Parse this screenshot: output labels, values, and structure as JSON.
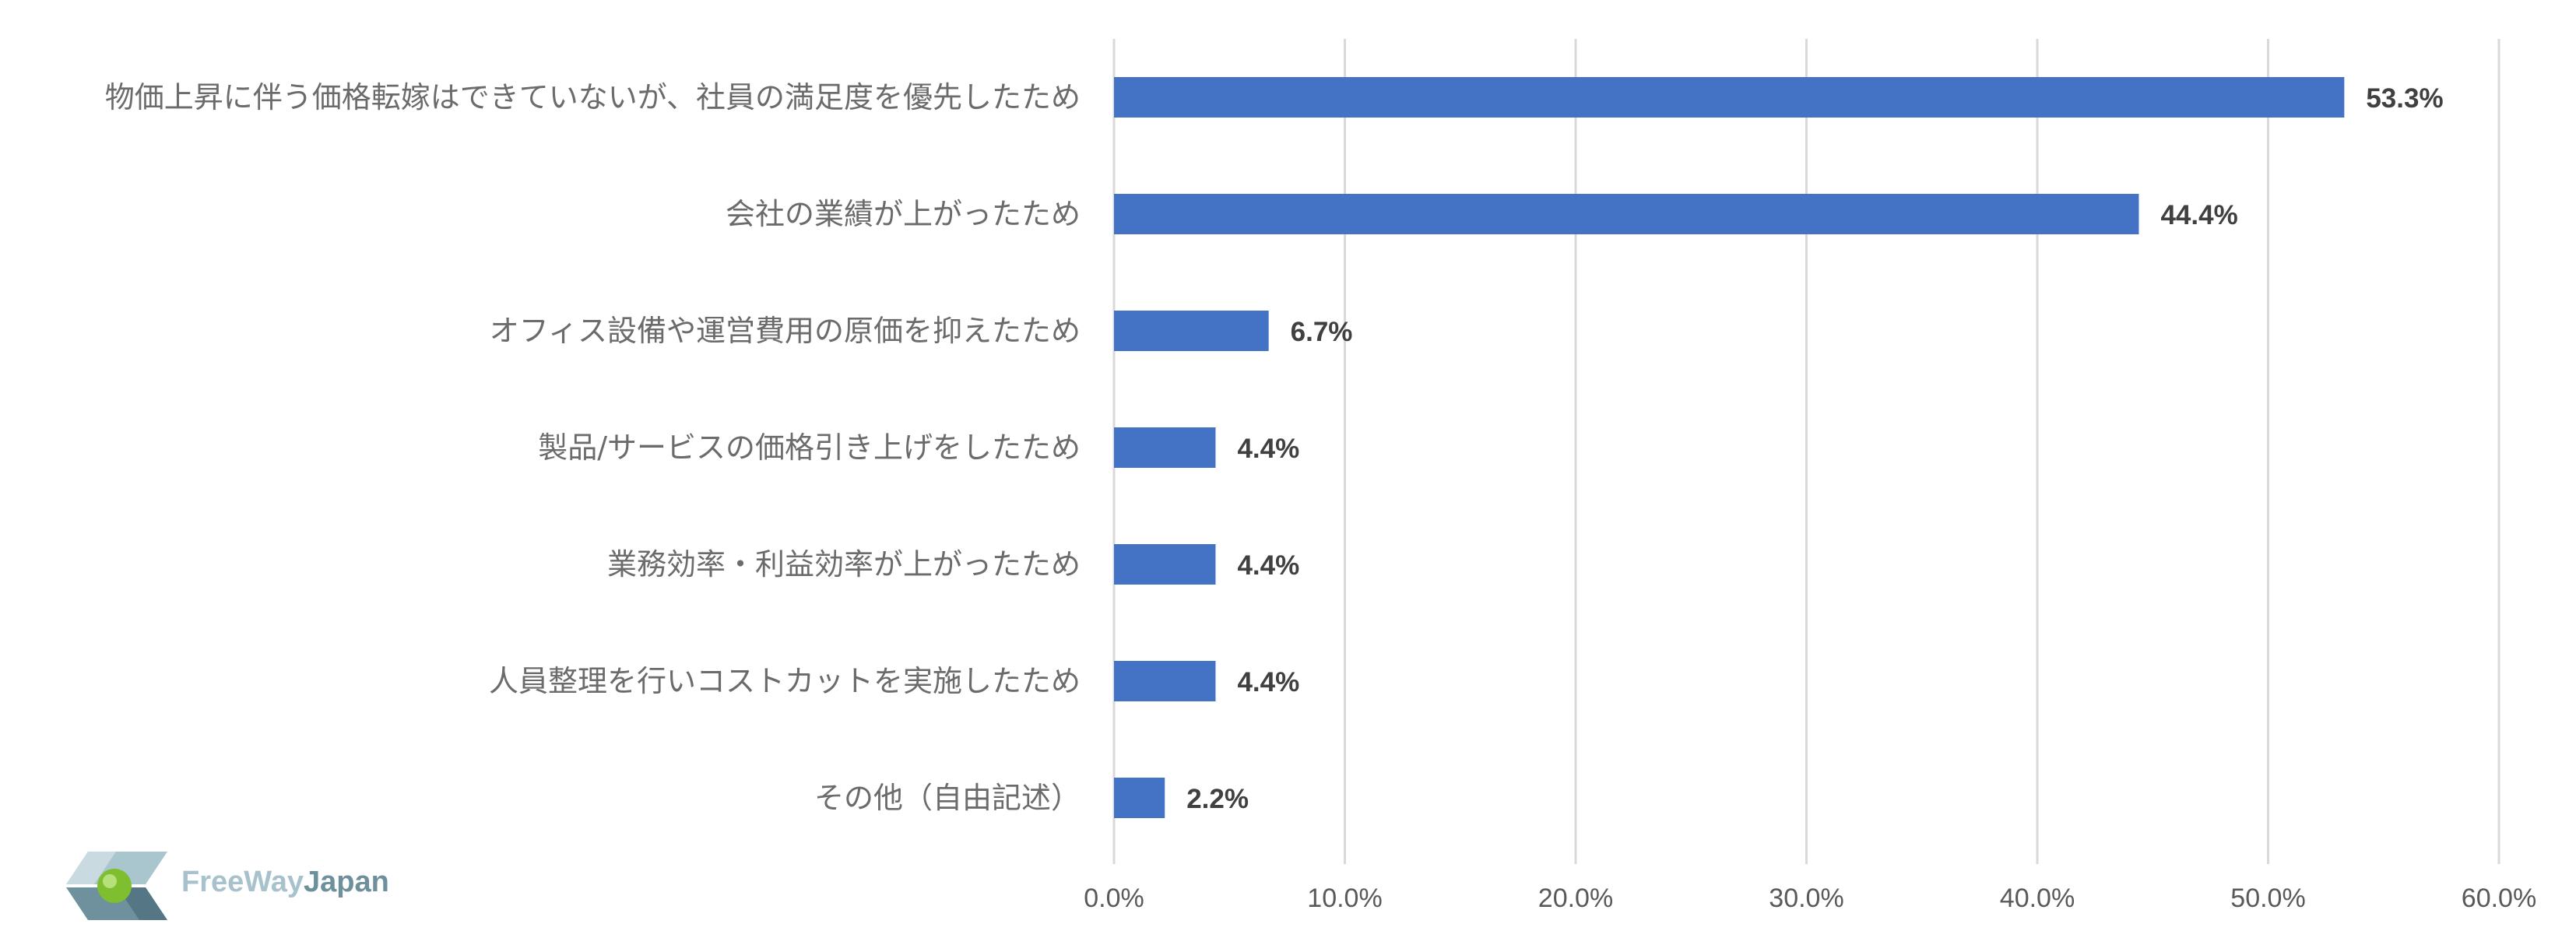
{
  "chart_data": {
    "type": "bar",
    "orientation": "horizontal",
    "categories": [
      "物価上昇に伴う価格転嫁はできていないが、社員の満足度を優先したため",
      "会社の業績が上がったため",
      "オフィス設備や運営費用の原価を抑えたため",
      "製品/サービスの価格引き上げをしたため",
      "業務効率・利益効率が上がったため",
      "人員整理を行いコストカットを実施したため",
      "その他（自由記述）"
    ],
    "values": [
      53.3,
      44.4,
      6.7,
      4.4,
      4.4,
      4.4,
      2.2
    ],
    "data_labels": [
      "53.3%",
      "44.4%",
      "6.7%",
      "4.4%",
      "4.4%",
      "4.4%",
      "2.2%"
    ],
    "xlim": [
      0,
      60
    ],
    "x_ticks": [
      0,
      10,
      20,
      30,
      40,
      50,
      60
    ],
    "x_tick_labels": [
      "0.0%",
      "10.0%",
      "20.0%",
      "30.0%",
      "40.0%",
      "50.0%",
      "60.0%"
    ],
    "grid": "vertical",
    "bar_color": "#4472c4",
    "title": "",
    "xlabel": "",
    "ylabel": ""
  },
  "logo": {
    "text_part1": "FreeWay",
    "text_part2": "Japan"
  }
}
